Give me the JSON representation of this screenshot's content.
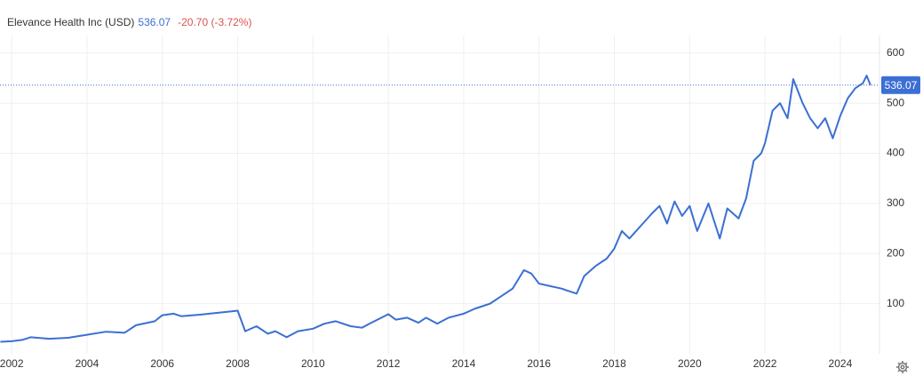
{
  "chart_data": {
    "type": "line",
    "title": "Elevance Health Inc (USD)",
    "last_price": 536.07,
    "change": "-20.70 (-3.72%)",
    "series": [
      {
        "name": "Elevance Health Inc (USD)",
        "color": "#3b6fd4",
        "x": [
          2001.7,
          2002.0,
          2002.3,
          2002.5,
          2003.0,
          2003.5,
          2004.0,
          2004.5,
          2005.0,
          2005.3,
          2005.8,
          2006.0,
          2006.3,
          2006.5,
          2007.0,
          2007.5,
          2008.0,
          2008.2,
          2008.5,
          2008.8,
          2009.0,
          2009.3,
          2009.6,
          2010.0,
          2010.3,
          2010.6,
          2011.0,
          2011.3,
          2011.5,
          2012.0,
          2012.2,
          2012.5,
          2012.8,
          2013.0,
          2013.3,
          2013.6,
          2014.0,
          2014.3,
          2014.7,
          2015.0,
          2015.3,
          2015.6,
          2015.8,
          2016.0,
          2016.3,
          2016.6,
          2016.8,
          2017.0,
          2017.2,
          2017.5,
          2017.8,
          2018.0,
          2018.2,
          2018.4,
          2018.7,
          2019.0,
          2019.2,
          2019.4,
          2019.6,
          2019.8,
          2020.0,
          2020.2,
          2020.5,
          2020.8,
          2021.0,
          2021.3,
          2021.5,
          2021.7,
          2021.9,
          2022.0,
          2022.2,
          2022.4,
          2022.6,
          2022.75,
          2023.0,
          2023.2,
          2023.4,
          2023.6,
          2023.8,
          2024.0,
          2024.2,
          2024.4,
          2024.6,
          2024.7,
          2024.8
        ],
        "values": [
          24,
          25,
          28,
          33,
          30,
          32,
          38,
          44,
          42,
          57,
          65,
          77,
          80,
          75,
          78,
          82,
          86,
          45,
          55,
          40,
          45,
          33,
          45,
          50,
          60,
          65,
          55,
          52,
          60,
          79,
          68,
          72,
          62,
          72,
          60,
          72,
          80,
          90,
          100,
          115,
          130,
          167,
          160,
          140,
          135,
          130,
          125,
          120,
          155,
          175,
          190,
          210,
          245,
          230,
          255,
          280,
          295,
          260,
          304,
          275,
          295,
          245,
          300,
          230,
          290,
          270,
          310,
          385,
          400,
          420,
          485,
          500,
          470,
          548,
          500,
          470,
          450,
          470,
          430,
          475,
          510,
          530,
          540,
          555,
          536.07
        ]
      }
    ],
    "xlim": [
      2001.69,
      2025.04
    ],
    "ylim": [
      0,
      635
    ],
    "xticks": [
      2002,
      2004,
      2006,
      2008,
      2010,
      2012,
      2014,
      2016,
      2018,
      2020,
      2022,
      2024
    ],
    "yticks": [
      100,
      200,
      300,
      400,
      500,
      600
    ],
    "grid": true
  }
}
